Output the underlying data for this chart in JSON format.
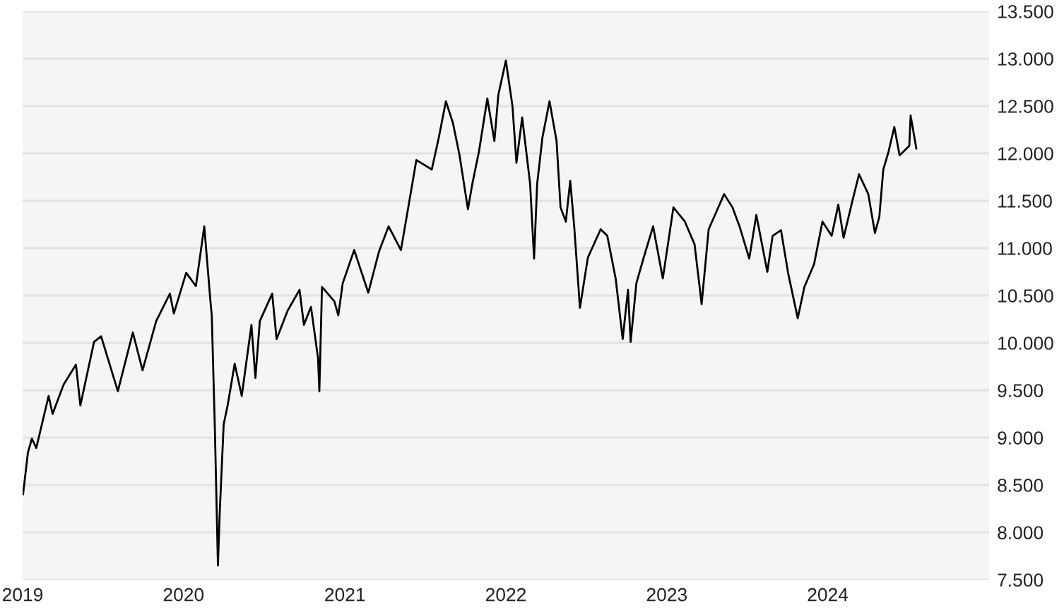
{
  "chart_data": {
    "type": "line",
    "x": [
      "2019-01-02",
      "2019-01-13",
      "2019-01-22",
      "2019-02-01",
      "2019-03-01",
      "2019-03-10",
      "2019-04-04",
      "2019-05-02",
      "2019-05-12",
      "2019-06-12",
      "2019-06-28",
      "2019-08-05",
      "2019-09-08",
      "2019-09-30",
      "2019-10-31",
      "2019-12-01",
      "2019-12-10",
      "2020-01-07",
      "2020-01-29",
      "2020-02-17",
      "2020-03-02",
      "2020-03-05",
      "2020-03-12",
      "2020-03-19",
      "2020-03-23",
      "2020-04-01",
      "2020-04-10",
      "2020-04-26",
      "2020-05-12",
      "2020-06-03",
      "2020-06-12",
      "2020-06-22",
      "2020-07-20",
      "2020-07-30",
      "2020-08-24",
      "2020-09-20",
      "2020-09-30",
      "2020-10-16",
      "2020-11-01",
      "2020-11-04",
      "2020-11-10",
      "2020-12-08",
      "2020-12-17",
      "2020-12-27",
      "2021-01-22",
      "2021-02-23",
      "2021-03-19",
      "2021-04-10",
      "2021-05-08",
      "2021-05-21",
      "2021-06-12",
      "2021-07-17",
      "2021-08-02",
      "2021-08-18",
      "2021-09-03",
      "2021-09-18",
      "2021-10-07",
      "2021-10-17",
      "2021-11-01",
      "2021-11-20",
      "2021-12-06",
      "2021-12-15",
      "2022-01-01",
      "2022-01-16",
      "2022-01-25",
      "2022-02-07",
      "2022-02-25",
      "2022-03-06",
      "2022-03-13",
      "2022-03-25",
      "2022-04-10",
      "2022-04-26",
      "2022-05-05",
      "2022-05-17",
      "2022-05-27",
      "2022-06-05",
      "2022-06-18",
      "2022-07-06",
      "2022-08-04",
      "2022-08-19",
      "2022-09-07",
      "2022-09-23",
      "2022-10-05",
      "2022-10-11",
      "2022-10-24",
      "2022-11-09",
      "2022-12-01",
      "2022-12-23",
      "2023-01-16",
      "2023-02-11",
      "2023-03-05",
      "2023-03-21",
      "2023-04-06",
      "2023-05-11",
      "2023-05-30",
      "2023-06-15",
      "2023-07-07",
      "2023-07-23",
      "2023-08-17",
      "2023-08-29",
      "2023-09-17",
      "2023-10-03",
      "2023-10-25",
      "2023-11-09",
      "2023-12-01",
      "2023-12-20",
      "2024-01-10",
      "2024-01-25",
      "2024-02-06",
      "2024-02-25",
      "2024-03-12",
      "2024-04-02",
      "2024-04-17",
      "2024-04-27",
      "2024-05-06",
      "2024-05-18",
      "2024-05-31",
      "2024-06-12",
      "2024-07-04",
      "2024-07-07",
      "2024-07-20"
    ],
    "series": [
      {
        "color": "#000000",
        "values": [
          8400,
          8840,
          8990,
          8890,
          9440,
          9250,
          9560,
          9770,
          9340,
          10010,
          10070,
          9490,
          10110,
          9710,
          10230,
          10520,
          10310,
          10740,
          10600,
          11230,
          10440,
          10290,
          9100,
          7650,
          8200,
          9140,
          9340,
          9780,
          9440,
          10190,
          9630,
          10230,
          10520,
          10040,
          10340,
          10560,
          10190,
          10380,
          9840,
          9490,
          10590,
          10440,
          10290,
          10630,
          10980,
          10530,
          10960,
          11230,
          10980,
          11330,
          11930,
          11830,
          12170,
          12550,
          12320,
          11980,
          11410,
          11680,
          12020,
          12580,
          12130,
          12620,
          12980,
          12500,
          11900,
          12380,
          11680,
          10890,
          11680,
          12170,
          12550,
          12130,
          11430,
          11280,
          11710,
          11230,
          10370,
          10900,
          11200,
          11130,
          10680,
          10040,
          10560,
          10010,
          10630,
          10890,
          11230,
          10680,
          11430,
          11280,
          11040,
          10410,
          11200,
          11570,
          11430,
          11230,
          10890,
          11350,
          10750,
          11130,
          11190,
          10740,
          10260,
          10590,
          10830,
          11280,
          11130,
          11460,
          11110,
          11480,
          11780,
          11570,
          11160,
          11330,
          11830,
          12020,
          12280,
          11980,
          12080,
          12400,
          12050
        ]
      }
    ],
    "xlim": [
      "2019-01-01",
      "2025-01-01"
    ],
    "xticks": [
      {
        "value": "2019-01-01",
        "label": "2019"
      },
      {
        "value": "2020-01-01",
        "label": "2020"
      },
      {
        "value": "2021-01-01",
        "label": "2021"
      },
      {
        "value": "2022-01-01",
        "label": "2022"
      },
      {
        "value": "2023-01-01",
        "label": "2023"
      },
      {
        "value": "2024-01-01",
        "label": "2024"
      }
    ],
    "ylim": [
      7500,
      13500
    ],
    "yticks": [
      {
        "value": 7500,
        "label": "7.500"
      },
      {
        "value": 8000,
        "label": "8.000"
      },
      {
        "value": 8500,
        "label": "8.500"
      },
      {
        "value": 9000,
        "label": "9.000"
      },
      {
        "value": 9500,
        "label": "9.500"
      },
      {
        "value": 10000,
        "label": "10.000"
      },
      {
        "value": 10500,
        "label": "10.500"
      },
      {
        "value": 11000,
        "label": "11.000"
      },
      {
        "value": 11500,
        "label": "11.500"
      },
      {
        "value": 12000,
        "label": "12.000"
      },
      {
        "value": 12500,
        "label": "12.500"
      },
      {
        "value": 13000,
        "label": "13.000"
      },
      {
        "value": 13500,
        "label": "13.500"
      }
    ],
    "grid": "y",
    "marker": "none",
    "line_style": "solid"
  }
}
